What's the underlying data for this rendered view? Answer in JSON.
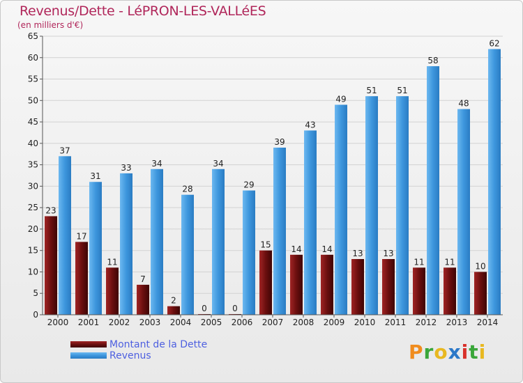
{
  "header": {
    "title": "Revenus/Dette - LéPRON-LES-VALLéES",
    "subtitle": "(en milliers d'€)"
  },
  "legend": {
    "items": [
      {
        "label": "Montant de la Dette",
        "color": "#6b0f0f"
      },
      {
        "label": "Revenus",
        "color": "#3d96dd"
      }
    ]
  },
  "logo": {
    "letters": [
      "P",
      "r",
      "o",
      "x",
      "i",
      "t",
      "i"
    ],
    "colors": [
      "#f08c1e",
      "#3aa63a",
      "#e8b820",
      "#2b78c8",
      "#d8302a",
      "#3aa63a",
      "#e8b820"
    ]
  },
  "chart_data": {
    "type": "bar",
    "categories": [
      "2000",
      "2001",
      "2002",
      "2003",
      "2004",
      "2005",
      "2006",
      "2007",
      "2008",
      "2009",
      "2010",
      "2011",
      "2012",
      "2013",
      "2014"
    ],
    "series": [
      {
        "name": "Montant de la Dette",
        "values": [
          23,
          17,
          11,
          7,
          2,
          0,
          0,
          15,
          14,
          14,
          13,
          13,
          11,
          11,
          10
        ],
        "color": "#6b0f0f"
      },
      {
        "name": "Revenus",
        "values": [
          37,
          31,
          33,
          34,
          28,
          34,
          29,
          39,
          43,
          49,
          51,
          51,
          58,
          48,
          62
        ],
        "color": "#3d96dd"
      }
    ],
    "ylim": [
      0,
      65
    ],
    "ytick_step": 5,
    "yticks": [
      "0",
      "5",
      "10",
      "15",
      "20",
      "25",
      "30",
      "35",
      "40",
      "45",
      "50",
      "55",
      "60",
      "65"
    ],
    "grid": true,
    "legend_position": "bottom-left",
    "title": "Revenus/Dette - LéPRON-LES-VALLéES",
    "xlabel": "",
    "ylabel": ""
  }
}
